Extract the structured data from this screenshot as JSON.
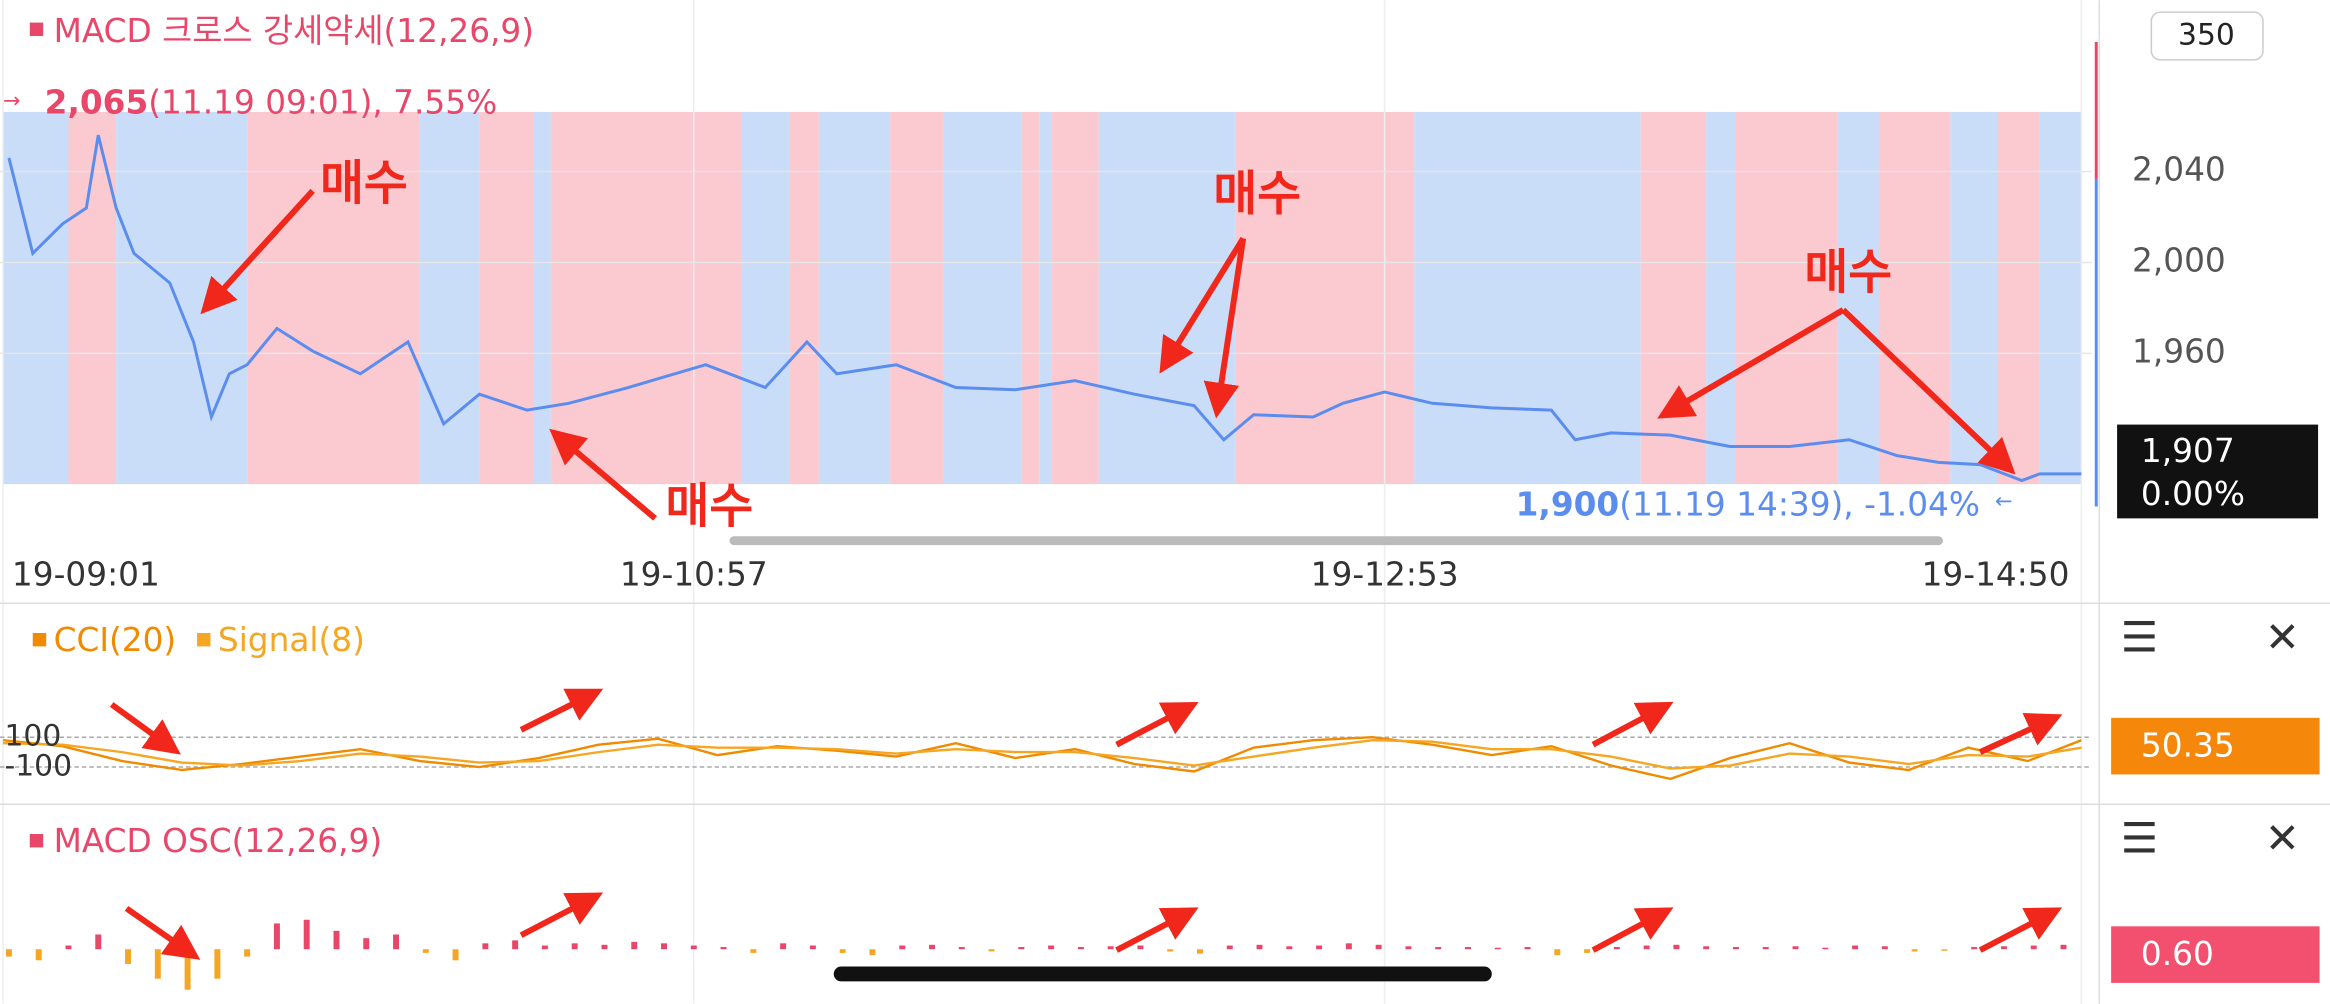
{
  "chart_data": [
    {
      "type": "line",
      "title": "MACD 크로스 강세약세(12,26,9)",
      "visible_count": 350,
      "x": [
        1,
        5,
        10,
        14,
        16,
        19,
        22,
        28,
        32,
        35,
        38,
        41,
        46,
        52,
        60,
        68,
        74,
        80,
        88,
        95,
        105,
        118,
        128,
        135,
        140,
        150,
        160,
        170,
        180,
        190,
        200,
        205,
        210,
        220,
        225,
        232,
        240,
        250,
        260,
        264,
        270,
        280,
        290,
        300,
        310,
        318,
        325,
        332,
        339,
        342,
        349
      ],
      "series": [
        {
          "color": "#5b8def",
          "values": [
            2046,
            2004,
            2017,
            2024,
            2056,
            2024,
            2004,
            1991,
            1965,
            1932,
            1951,
            1955,
            1971,
            1961,
            1951,
            1965,
            1929,
            1942,
            1935,
            1938,
            1945,
            1955,
            1945,
            1965,
            1951,
            1955,
            1945,
            1944,
            1948,
            1942,
            1937,
            1922,
            1933,
            1932,
            1938,
            1943,
            1938,
            1936,
            1935,
            1922,
            1925,
            1924,
            1919,
            1919,
            1922,
            1915,
            1912,
            1911,
            1904,
            1907,
            1907
          ]
        }
      ],
      "regions": [
        {
          "from": 0,
          "to": 11,
          "color": "#c9dcf8"
        },
        {
          "from": 11,
          "to": 19,
          "color": "#fbc9d0"
        },
        {
          "from": 19,
          "to": 41,
          "color": "#c9dcf8"
        },
        {
          "from": 41,
          "to": 70,
          "color": "#fbc9d0"
        },
        {
          "from": 70,
          "to": 80,
          "color": "#c9dcf8"
        },
        {
          "from": 80,
          "to": 89,
          "color": "#fbc9d0"
        },
        {
          "from": 89,
          "to": 92,
          "color": "#c9dcf8"
        },
        {
          "from": 92,
          "to": 124,
          "color": "#fbc9d0"
        },
        {
          "from": 124,
          "to": 132,
          "color": "#c9dcf8"
        },
        {
          "from": 132,
          "to": 137,
          "color": "#fbc9d0"
        },
        {
          "from": 137,
          "to": 149,
          "color": "#c9dcf8"
        },
        {
          "from": 149,
          "to": 158,
          "color": "#fbc9d0"
        },
        {
          "from": 158,
          "to": 171,
          "color": "#c9dcf8"
        },
        {
          "from": 171,
          "to": 174,
          "color": "#fbc9d0"
        },
        {
          "from": 174,
          "to": 176,
          "color": "#c9dcf8"
        },
        {
          "from": 176,
          "to": 184,
          "color": "#fbc9d0"
        },
        {
          "from": 184,
          "to": 207,
          "color": "#c9dcf8"
        },
        {
          "from": 207,
          "to": 237,
          "color": "#fbc9d0"
        },
        {
          "from": 237,
          "to": 275,
          "color": "#c9dcf8"
        },
        {
          "from": 275,
          "to": 286,
          "color": "#fbc9d0"
        },
        {
          "from": 286,
          "to": 291,
          "color": "#c9dcf8"
        },
        {
          "from": 291,
          "to": 308,
          "color": "#fbc9d0"
        },
        {
          "from": 308,
          "to": 315,
          "color": "#c9dcf8"
        },
        {
          "from": 315,
          "to": 327,
          "color": "#fbc9d0"
        },
        {
          "from": 327,
          "to": 335,
          "color": "#c9dcf8"
        },
        {
          "from": 335,
          "to": 342,
          "color": "#fbc9d0"
        },
        {
          "from": 342,
          "to": 349,
          "color": "#c9dcf8"
        }
      ],
      "xlim": [
        0,
        349
      ],
      "xticks": [
        {
          "value": 0,
          "label": "19-09:01"
        },
        {
          "value": 116,
          "label": "19-10:57"
        },
        {
          "value": 232,
          "label": "19-12:53"
        },
        {
          "value": 349,
          "label": "19-14:50"
        }
      ],
      "ylim": [
        1890,
        2080
      ],
      "yticks": [
        {
          "value": 2040,
          "label": "2,040"
        },
        {
          "value": 2000,
          "label": "2,000"
        },
        {
          "value": 1960,
          "label": "1,960"
        }
      ],
      "high": {
        "value": 2065,
        "label": "2,065",
        "detail": "(11.19 09:01), 7.55%"
      },
      "low": {
        "value": 1900,
        "label": "1,900",
        "detail": "(11.19 14:39), -1.04%"
      },
      "current": {
        "value": 1907,
        "label": "1,907",
        "change": "0.00%"
      },
      "annotations": [
        "매수",
        "매수",
        "매수",
        "매수"
      ]
    },
    {
      "type": "line",
      "x": [
        0,
        10,
        20,
        30,
        40,
        50,
        60,
        70,
        80,
        90,
        100,
        110,
        120,
        130,
        140,
        150,
        160,
        170,
        180,
        190,
        200,
        210,
        220,
        230,
        240,
        250,
        260,
        270,
        280,
        290,
        300,
        310,
        320,
        330,
        340,
        349
      ],
      "series": [
        {
          "name": "CCI(20)",
          "color": "#f08a00",
          "values": [
            80,
            40,
            -60,
            -120,
            -80,
            -30,
            20,
            -60,
            -100,
            -40,
            50,
            90,
            -20,
            40,
            10,
            -30,
            60,
            -40,
            20,
            -80,
            -130,
            30,
            80,
            100,
            50,
            -20,
            40,
            -90,
            -180,
            -40,
            60,
            -70,
            -120,
            30,
            -60,
            80
          ]
        },
        {
          "name": "Signal(8)",
          "color": "#f5a623",
          "values": [
            60,
            50,
            0,
            -70,
            -90,
            -60,
            -10,
            -30,
            -70,
            -60,
            0,
            50,
            30,
            30,
            20,
            -10,
            20,
            0,
            0,
            -40,
            -90,
            -30,
            30,
            80,
            70,
            20,
            20,
            -30,
            -110,
            -90,
            -10,
            -30,
            -80,
            -20,
            -30,
            30
          ]
        }
      ],
      "xlim": [
        0,
        349
      ],
      "ylim": [
        -350,
        500
      ],
      "yticks": [
        100,
        -100
      ],
      "current": 50.35
    },
    {
      "type": "bar",
      "title": "MACD OSC(12,26,9)",
      "x": [
        1,
        6,
        11,
        16,
        21,
        26,
        31,
        36,
        41,
        46,
        51,
        56,
        61,
        66,
        71,
        76,
        81,
        86,
        91,
        96,
        101,
        106,
        111,
        116,
        121,
        126,
        131,
        136,
        141,
        146,
        151,
        156,
        161,
        166,
        171,
        176,
        181,
        186,
        191,
        196,
        201,
        206,
        211,
        216,
        221,
        226,
        231,
        236,
        241,
        246,
        251,
        256,
        261,
        266,
        271,
        276,
        281,
        286,
        291,
        296,
        301,
        306,
        311,
        316,
        321,
        326,
        331,
        336,
        341,
        346
      ],
      "values": [
        -1,
        -1.5,
        0.5,
        2,
        -2,
        -4,
        -5.5,
        -4,
        -1,
        3.5,
        4,
        2.5,
        1.5,
        2,
        -0.5,
        -1.5,
        0.8,
        1.2,
        0.5,
        0.8,
        0.6,
        1,
        0.8,
        0.5,
        0.3,
        -0.5,
        0.8,
        0.5,
        -0.5,
        -0.8,
        0.5,
        0.6,
        0.3,
        -0.3,
        0.3,
        0.5,
        0.3,
        0.4,
        0.5,
        -0.3,
        -0.6,
        0.5,
        0.6,
        0.4,
        0.5,
        0.8,
        0.6,
        0.4,
        0.3,
        0.3,
        0.2,
        0.3,
        -0.8,
        -0.5,
        0.3,
        0.5,
        0.6,
        0.4,
        0.3,
        0.3,
        0.4,
        0.2,
        0.5,
        0.4,
        -0.3,
        -0.2,
        0.3,
        0.4,
        0.5,
        0.6
      ],
      "colors": {
        "positive": "#e8476a",
        "negative": "#f5a623"
      },
      "xlim": [
        0,
        349
      ],
      "ylim": [
        -7.4,
        11.6
      ],
      "current": {
        "value": 0.6,
        "label": "0.60"
      }
    }
  ]
}
